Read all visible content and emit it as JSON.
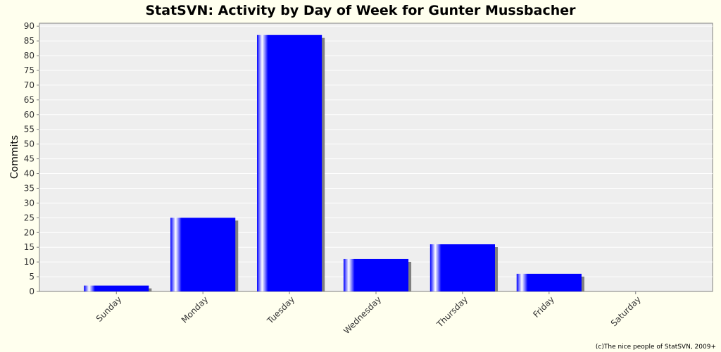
{
  "chart_data": {
    "type": "bar",
    "title": "StatSVN: Activity by Day of Week for Gunter Mussbacher",
    "xlabel": "",
    "ylabel": "Commits",
    "categories": [
      "Sunday",
      "Monday",
      "Tuesday",
      "Wednesday",
      "Thursday",
      "Friday",
      "Saturday"
    ],
    "values": [
      2,
      25,
      87,
      11,
      16,
      6,
      0
    ],
    "ylim": [
      0,
      91
    ],
    "yticks": [
      0,
      5,
      10,
      15,
      20,
      25,
      30,
      35,
      40,
      45,
      50,
      55,
      60,
      65,
      70,
      75,
      80,
      85,
      90
    ],
    "grid": true,
    "legend": "none"
  },
  "colors": {
    "bar": "#0000ff",
    "bar_highlight": "#ffffff",
    "bar_shadow": "#808080",
    "plot_background": "#eeeeee",
    "page_background": "#ffffee",
    "gridline": "#ffffff"
  },
  "footer": {
    "credit": "(c)The nice people of StatSVN, 2009+"
  }
}
